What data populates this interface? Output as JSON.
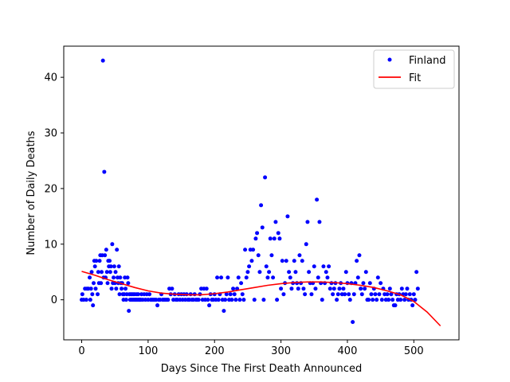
{
  "chart_data": {
    "type": "scatter",
    "xlabel": "Days Since The First Death Announced",
    "ylabel": "Number of Daily Deaths",
    "xlim": [
      -27,
      568
    ],
    "ylim": [
      -7.2,
      45.6
    ],
    "xticks": [
      0,
      100,
      200,
      300,
      400,
      500
    ],
    "yticks": [
      0,
      10,
      20,
      30,
      40
    ],
    "grid": false,
    "legend": {
      "placement": "top-right",
      "entries": [
        "Finland",
        "Fit"
      ]
    },
    "series": [
      {
        "name": "Finland",
        "marker": "dot",
        "color": "#0000ff",
        "points": [
          [
            0,
            0
          ],
          [
            1,
            1
          ],
          [
            3,
            0
          ],
          [
            5,
            2
          ],
          [
            7,
            0
          ],
          [
            8,
            2
          ],
          [
            10,
            2
          ],
          [
            12,
            4
          ],
          [
            13,
            0
          ],
          [
            14,
            2
          ],
          [
            15,
            5
          ],
          [
            16,
            1
          ],
          [
            17,
            -1
          ],
          [
            18,
            3
          ],
          [
            19,
            7
          ],
          [
            20,
            6
          ],
          [
            21,
            2
          ],
          [
            22,
            7
          ],
          [
            24,
            1
          ],
          [
            25,
            5
          ],
          [
            26,
            3
          ],
          [
            27,
            7
          ],
          [
            28,
            8
          ],
          [
            29,
            3
          ],
          [
            30,
            5
          ],
          [
            31,
            8
          ],
          [
            32,
            43
          ],
          [
            33,
            4
          ],
          [
            34,
            23
          ],
          [
            35,
            8
          ],
          [
            36,
            4
          ],
          [
            37,
            9
          ],
          [
            38,
            5
          ],
          [
            39,
            3
          ],
          [
            40,
            7
          ],
          [
            41,
            6
          ],
          [
            42,
            7
          ],
          [
            43,
            5
          ],
          [
            44,
            6
          ],
          [
            45,
            2
          ],
          [
            46,
            10
          ],
          [
            47,
            3
          ],
          [
            48,
            4
          ],
          [
            49,
            6
          ],
          [
            50,
            3
          ],
          [
            51,
            5
          ],
          [
            52,
            2
          ],
          [
            53,
            9
          ],
          [
            54,
            4
          ],
          [
            55,
            3
          ],
          [
            56,
            6
          ],
          [
            57,
            1
          ],
          [
            58,
            4
          ],
          [
            59,
            3
          ],
          [
            60,
            2
          ],
          [
            61,
            3
          ],
          [
            62,
            1
          ],
          [
            63,
            0
          ],
          [
            64,
            1
          ],
          [
            65,
            4
          ],
          [
            66,
            2
          ],
          [
            67,
            0
          ],
          [
            68,
            1
          ],
          [
            69,
            4
          ],
          [
            70,
            3
          ],
          [
            71,
            -2
          ],
          [
            72,
            1
          ],
          [
            73,
            0
          ],
          [
            74,
            1
          ],
          [
            75,
            0
          ],
          [
            76,
            1
          ],
          [
            77,
            0
          ],
          [
            78,
            1
          ],
          [
            79,
            0
          ],
          [
            80,
            1
          ],
          [
            81,
            0
          ],
          [
            82,
            0
          ],
          [
            83,
            1
          ],
          [
            84,
            0
          ],
          [
            85,
            1
          ],
          [
            86,
            0
          ],
          [
            87,
            0
          ],
          [
            88,
            0
          ],
          [
            89,
            0
          ],
          [
            90,
            1
          ],
          [
            92,
            0
          ],
          [
            94,
            1
          ],
          [
            96,
            0
          ],
          [
            98,
            1
          ],
          [
            100,
            0
          ],
          [
            102,
            1
          ],
          [
            104,
            0
          ],
          [
            106,
            0
          ],
          [
            108,
            0
          ],
          [
            110,
            0
          ],
          [
            112,
            0
          ],
          [
            114,
            -1
          ],
          [
            116,
            0
          ],
          [
            118,
            0
          ],
          [
            120,
            1
          ],
          [
            122,
            0
          ],
          [
            124,
            0
          ],
          [
            126,
            0
          ],
          [
            128,
            0
          ],
          [
            130,
            0
          ],
          [
            132,
            2
          ],
          [
            134,
            1
          ],
          [
            136,
            2
          ],
          [
            138,
            0
          ],
          [
            140,
            1
          ],
          [
            142,
            0
          ],
          [
            144,
            0
          ],
          [
            146,
            1
          ],
          [
            148,
            0
          ],
          [
            150,
            1
          ],
          [
            152,
            0
          ],
          [
            154,
            1
          ],
          [
            156,
            0
          ],
          [
            158,
            1
          ],
          [
            160,
            0
          ],
          [
            162,
            0
          ],
          [
            164,
            1
          ],
          [
            166,
            0
          ],
          [
            168,
            0
          ],
          [
            170,
            1
          ],
          [
            172,
            0
          ],
          [
            174,
            0
          ],
          [
            176,
            0
          ],
          [
            178,
            1
          ],
          [
            180,
            2
          ],
          [
            182,
            0
          ],
          [
            184,
            2
          ],
          [
            186,
            0
          ],
          [
            188,
            2
          ],
          [
            190,
            0
          ],
          [
            192,
            -1
          ],
          [
            194,
            1
          ],
          [
            196,
            0
          ],
          [
            198,
            0
          ],
          [
            200,
            1
          ],
          [
            202,
            0
          ],
          [
            204,
            4
          ],
          [
            206,
            0
          ],
          [
            208,
            1
          ],
          [
            210,
            4
          ],
          [
            212,
            0
          ],
          [
            214,
            -2
          ],
          [
            216,
            0
          ],
          [
            218,
            1
          ],
          [
            220,
            4
          ],
          [
            222,
            0
          ],
          [
            224,
            1
          ],
          [
            226,
            0
          ],
          [
            228,
            2
          ],
          [
            230,
            1
          ],
          [
            232,
            0
          ],
          [
            234,
            2
          ],
          [
            236,
            4
          ],
          [
            238,
            0
          ],
          [
            240,
            3
          ],
          [
            242,
            1
          ],
          [
            244,
            0
          ],
          [
            246,
            9
          ],
          [
            248,
            4
          ],
          [
            250,
            5
          ],
          [
            252,
            6
          ],
          [
            254,
            9
          ],
          [
            256,
            7
          ],
          [
            258,
            9
          ],
          [
            260,
            0
          ],
          [
            262,
            11
          ],
          [
            264,
            12
          ],
          [
            266,
            8
          ],
          [
            268,
            5
          ],
          [
            270,
            17
          ],
          [
            272,
            13
          ],
          [
            274,
            0
          ],
          [
            276,
            22
          ],
          [
            278,
            6
          ],
          [
            280,
            4
          ],
          [
            282,
            5
          ],
          [
            284,
            11
          ],
          [
            286,
            8
          ],
          [
            288,
            4
          ],
          [
            290,
            11
          ],
          [
            292,
            14
          ],
          [
            294,
            0
          ],
          [
            296,
            12
          ],
          [
            298,
            11
          ],
          [
            300,
            2
          ],
          [
            302,
            7
          ],
          [
            304,
            1
          ],
          [
            306,
            3
          ],
          [
            308,
            7
          ],
          [
            310,
            15
          ],
          [
            312,
            5
          ],
          [
            314,
            4
          ],
          [
            316,
            2
          ],
          [
            318,
            3
          ],
          [
            320,
            7
          ],
          [
            322,
            5
          ],
          [
            324,
            3
          ],
          [
            326,
            2
          ],
          [
            328,
            8
          ],
          [
            330,
            3
          ],
          [
            332,
            7
          ],
          [
            334,
            2
          ],
          [
            336,
            1
          ],
          [
            338,
            10
          ],
          [
            340,
            14
          ],
          [
            342,
            5
          ],
          [
            344,
            3
          ],
          [
            346,
            1
          ],
          [
            348,
            3
          ],
          [
            350,
            6
          ],
          [
            352,
            2
          ],
          [
            354,
            18
          ],
          [
            356,
            4
          ],
          [
            358,
            14
          ],
          [
            360,
            3
          ],
          [
            362,
            0
          ],
          [
            364,
            6
          ],
          [
            366,
            3
          ],
          [
            368,
            5
          ],
          [
            370,
            4
          ],
          [
            372,
            6
          ],
          [
            374,
            2
          ],
          [
            376,
            3
          ],
          [
            378,
            1
          ],
          [
            380,
            2
          ],
          [
            382,
            3
          ],
          [
            384,
            0
          ],
          [
            386,
            1
          ],
          [
            388,
            2
          ],
          [
            390,
            3
          ],
          [
            392,
            1
          ],
          [
            394,
            2
          ],
          [
            396,
            1
          ],
          [
            398,
            5
          ],
          [
            400,
            3
          ],
          [
            402,
            1
          ],
          [
            404,
            0
          ],
          [
            406,
            3
          ],
          [
            408,
            -4
          ],
          [
            410,
            1
          ],
          [
            412,
            3
          ],
          [
            414,
            7
          ],
          [
            416,
            4
          ],
          [
            418,
            8
          ],
          [
            420,
            2
          ],
          [
            422,
            1
          ],
          [
            424,
            3
          ],
          [
            426,
            2
          ],
          [
            428,
            5
          ],
          [
            430,
            0
          ],
          [
            432,
            0
          ],
          [
            434,
            3
          ],
          [
            436,
            1
          ],
          [
            438,
            0
          ],
          [
            440,
            2
          ],
          [
            442,
            1
          ],
          [
            444,
            0
          ],
          [
            446,
            4
          ],
          [
            448,
            1
          ],
          [
            450,
            3
          ],
          [
            452,
            0
          ],
          [
            454,
            2
          ],
          [
            456,
            1
          ],
          [
            458,
            0
          ],
          [
            460,
            1
          ],
          [
            462,
            0
          ],
          [
            464,
            2
          ],
          [
            466,
            1
          ],
          [
            468,
            0
          ],
          [
            470,
            -1
          ],
          [
            472,
            -1
          ],
          [
            474,
            1
          ],
          [
            476,
            0
          ],
          [
            478,
            1
          ],
          [
            480,
            0
          ],
          [
            482,
            2
          ],
          [
            484,
            1
          ],
          [
            486,
            0
          ],
          [
            488,
            1
          ],
          [
            490,
            2
          ],
          [
            492,
            0
          ],
          [
            494,
            1
          ],
          [
            496,
            0
          ],
          [
            498,
            -1
          ],
          [
            500,
            1
          ],
          [
            502,
            0
          ],
          [
            504,
            5
          ],
          [
            506,
            2
          ]
        ]
      },
      {
        "name": "Fit",
        "line": "solid",
        "color": "#ff0000",
        "points": [
          [
            0,
            5.1
          ],
          [
            20,
            4.4
          ],
          [
            40,
            3.6
          ],
          [
            60,
            2.9
          ],
          [
            80,
            2.2
          ],
          [
            100,
            1.6
          ],
          [
            120,
            1.2
          ],
          [
            140,
            1.0
          ],
          [
            160,
            0.9
          ],
          [
            180,
            0.9
          ],
          [
            200,
            1.1
          ],
          [
            220,
            1.4
          ],
          [
            240,
            1.8
          ],
          [
            260,
            2.2
          ],
          [
            280,
            2.6
          ],
          [
            300,
            2.9
          ],
          [
            320,
            3.1
          ],
          [
            340,
            3.2
          ],
          [
            360,
            3.2
          ],
          [
            380,
            3.1
          ],
          [
            400,
            2.9
          ],
          [
            420,
            2.6
          ],
          [
            440,
            2.2
          ],
          [
            460,
            1.6
          ],
          [
            480,
            0.9
          ],
          [
            500,
            -0.3
          ],
          [
            520,
            -2.2
          ],
          [
            540,
            -4.7
          ]
        ]
      }
    ]
  }
}
